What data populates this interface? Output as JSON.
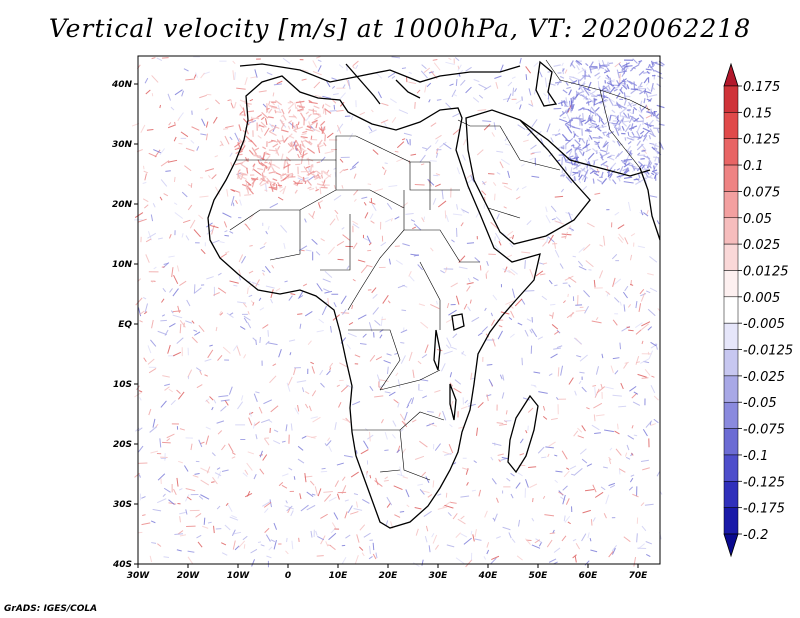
{
  "title": "Vertical velocity [m/s] at 1000hPa, VT: 2020062218",
  "credit": "GrADS: IGES/COLA",
  "map": {
    "region": "Africa",
    "lon_range": [
      -30,
      75
    ],
    "lat_range": [
      -40,
      45
    ],
    "lat_ticks": [
      "40N",
      "30N",
      "20N",
      "10N",
      "EQ",
      "10S",
      "20S",
      "30S",
      "40S"
    ],
    "lon_ticks": [
      "30W",
      "20W",
      "10W",
      "0",
      "10E",
      "20E",
      "30E",
      "40E",
      "50E",
      "60E",
      "70E"
    ]
  },
  "colorbar": {
    "levels": [
      "0.175",
      "0.15",
      "0.125",
      "0.1",
      "0.075",
      "0.05",
      "0.025",
      "0.0125",
      "0.005",
      "-0.005",
      "-0.0125",
      "-0.025",
      "-0.05",
      "-0.075",
      "-0.1",
      "-0.125",
      "-0.175",
      "-0.2"
    ],
    "colors": [
      "#b2182b",
      "#cf3339",
      "#e04a4a",
      "#e86565",
      "#ee8383",
      "#f3a0a0",
      "#f6bdbd",
      "#fad8d8",
      "#fdf0f0",
      "#ffffff",
      "#e6e6fa",
      "#c7c7f0",
      "#a8a8e6",
      "#8a8ade",
      "#6c6cd4",
      "#4e4ecb",
      "#3030bb",
      "#1a1aa8",
      "#0a0a90"
    ]
  }
}
